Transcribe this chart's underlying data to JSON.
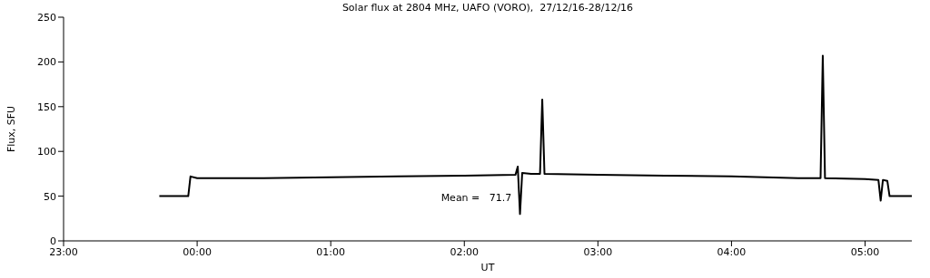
{
  "chart_data": {
    "type": "line",
    "title": "Solar flux at 2804 MHz, UAFO (VORO),  27/12/16-28/12/16",
    "xlabel": "UT",
    "ylabel": "Flux, SFU",
    "annotations": [
      "Mean =   71.7"
    ],
    "x": [
      "--12-27T23:43",
      "--12-27T23:56",
      "--12-27T23:57",
      "--12-28T00:00",
      "--12-28T00:30",
      "--12-28T01:00",
      "--12-28T01:30",
      "--12-28T02:00",
      "--12-28T02:23",
      "--12-28T02:24",
      "--12-28T02:25",
      "--12-28T02:26",
      "--12-28T02:30",
      "--12-28T02:34",
      "--12-28T02:35",
      "--12-28T02:36",
      "--12-28T03:00",
      "--12-28T03:30",
      "--12-28T04:00",
      "--12-28T04:30",
      "--12-28T04:40",
      "--12-28T04:41",
      "--12-28T04:42",
      "--12-28T05:00",
      "--12-28T05:06",
      "--12-28T05:07",
      "--12-28T05:08",
      "--12-28T05:10",
      "--12-28T05:11",
      "--12-28T05:21"
    ],
    "series": [
      {
        "color": "#000000",
        "values": [
          50,
          50,
          72,
          70,
          70,
          71,
          72,
          73,
          74,
          83,
          30,
          76,
          75,
          75,
          158,
          75,
          74,
          73,
          72,
          70,
          70,
          207,
          70,
          69,
          68,
          45,
          68,
          67,
          50,
          50
        ]
      }
    ],
    "xlim": [
      "--12-27T23:00",
      "--12-28T05:21"
    ],
    "xticks": [
      {
        "value": "--12-27T23:00",
        "label": "23:00"
      },
      {
        "value": "--12-28T00:00",
        "label": "00:00"
      },
      {
        "value": "--12-28T01:00",
        "label": "01:00"
      },
      {
        "value": "--12-28T02:00",
        "label": "02:00"
      },
      {
        "value": "--12-28T03:00",
        "label": "03:00"
      },
      {
        "value": "--12-28T04:00",
        "label": "04:00"
      },
      {
        "value": "--12-28T05:00",
        "label": "05:00"
      }
    ],
    "ylim": [
      0,
      250
    ],
    "yticks": [
      0,
      50,
      100,
      150,
      200,
      250
    ]
  }
}
